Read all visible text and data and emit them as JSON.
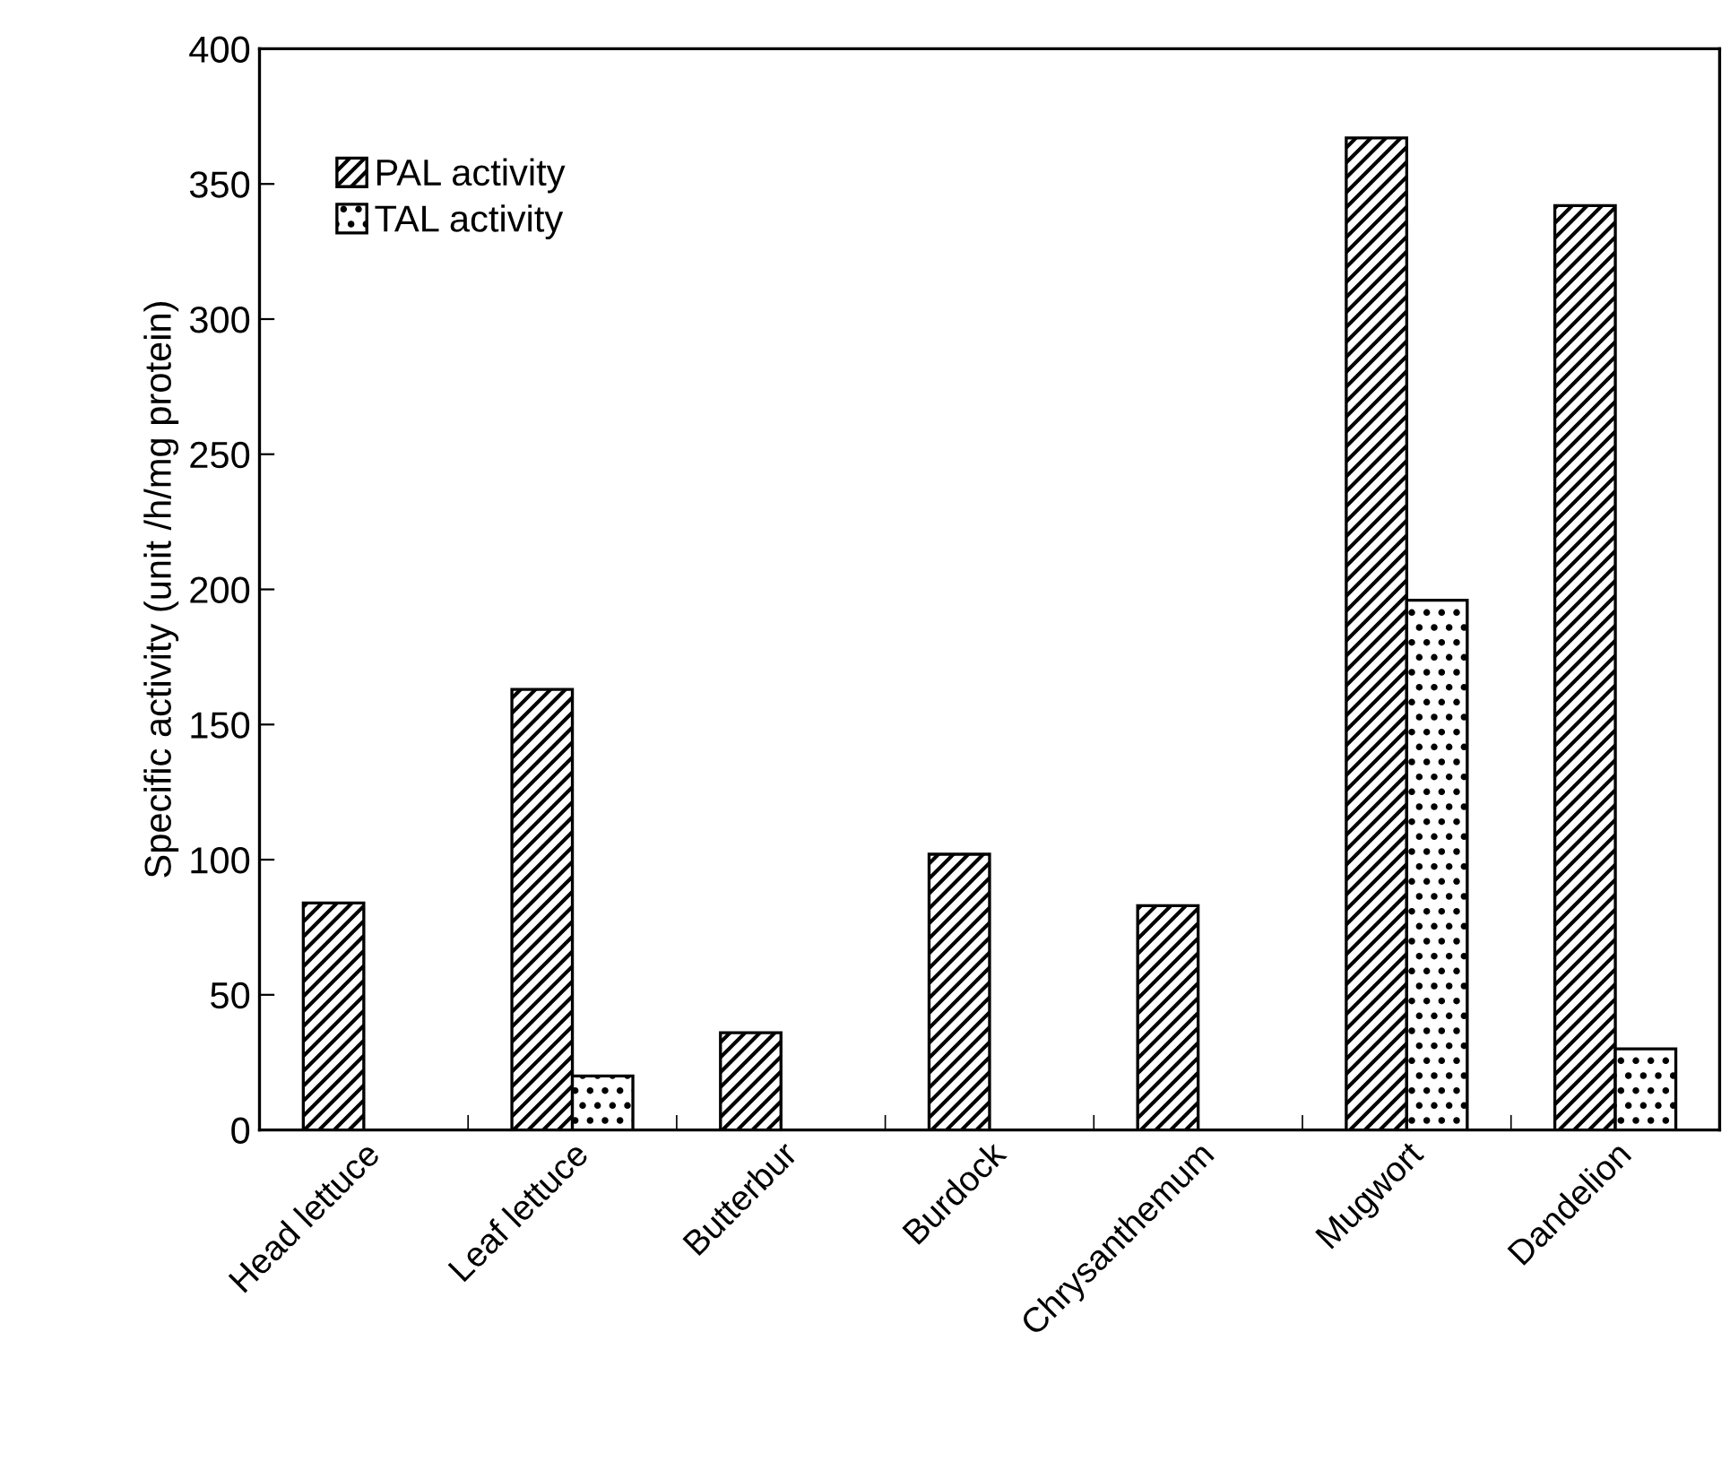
{
  "chart_data": {
    "type": "bar",
    "ylabel": "Specific activity (unit /h/mg protein)",
    "categories": [
      "Head lettuce",
      "Leaf lettuce",
      "Butterbur",
      "Burdock",
      "Chrysanthemum",
      "Mugwort",
      "Dandelion"
    ],
    "series": [
      {
        "name": "PAL activity",
        "color": "#000000",
        "values": [
          84,
          163,
          36,
          102,
          83,
          367,
          342
        ]
      },
      {
        "name": "TAL activity",
        "color": "#000000",
        "values": [
          null,
          20,
          null,
          null,
          null,
          196,
          30
        ]
      }
    ],
    "ylim": [
      0,
      400
    ],
    "yticks": [
      0,
      50,
      100,
      150,
      200,
      250,
      300,
      350,
      400
    ],
    "grid": false,
    "legend": "top left"
  }
}
